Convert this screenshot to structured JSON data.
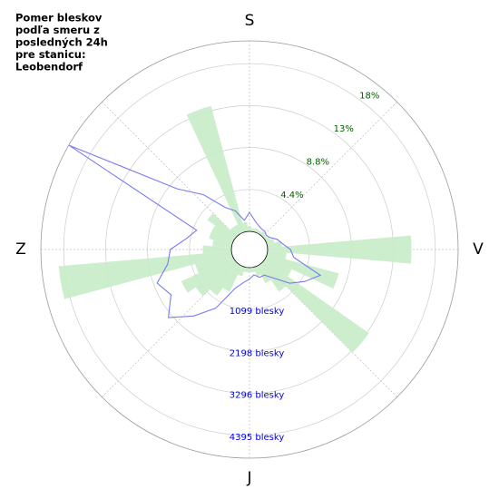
{
  "chart_data": {
    "type": "polar",
    "title": [
      "Pomer bleskov",
      "podľa smeru z",
      "posledných 24h",
      "pre stanicu:",
      "Leobendorf"
    ],
    "direction_labels": [
      "S",
      "V",
      "J",
      "Z"
    ],
    "theta": [
      0,
      10,
      20,
      30,
      40,
      50,
      60,
      70,
      80,
      90,
      100,
      110,
      120,
      130,
      140,
      150,
      160,
      170,
      180,
      190,
      200,
      210,
      220,
      230,
      240,
      250,
      260,
      270,
      280,
      290,
      300,
      310,
      320,
      330,
      340,
      350
    ],
    "series": [
      {
        "name": "percent",
        "kind": "bar",
        "color": "#c6ecc6",
        "values": [
          0.5,
          0.3,
          0.4,
          0.3,
          0.5,
          0.3,
          0.5,
          0.8,
          1.5,
          15.1,
          2.0,
          7.8,
          3.0,
          13.4,
          3.5,
          2.0,
          1.0,
          0.5,
          0.5,
          0.5,
          1.0,
          3.0,
          4.0,
          5.0,
          6.0,
          4.0,
          18.2,
          3.0,
          2.0,
          2.5,
          2.5,
          3.5,
          1.0,
          1.0,
          13.7,
          1.0
        ]
      },
      {
        "name": "count",
        "kind": "line",
        "axis": "y2",
        "color": "#7b7bef",
        "values": [
          500,
          300,
          200,
          150,
          150,
          100,
          150,
          300,
          400,
          600,
          700,
          1500,
          1200,
          900,
          500,
          300,
          300,
          200,
          300,
          400,
          600,
          1300,
          1800,
          2300,
          1900,
          2100,
          1700,
          1600,
          1200,
          1000,
          4990,
          2000,
          1400,
          800,
          600,
          300
        ]
      }
    ],
    "ylim": [
      0,
      20
    ],
    "yticks": [
      {
        "value": 4.4,
        "label": "4.4%"
      },
      {
        "value": 8.8,
        "label": "8.8%"
      },
      {
        "value": 13.2,
        "label": "13%"
      },
      {
        "value": 17.6,
        "label": "18%"
      }
    ],
    "ytick_color": "#006400",
    "y2lim": [
      0,
      4995
    ],
    "y2ticks": [
      {
        "value": 1099,
        "label": "1099 blesky"
      },
      {
        "value": 2198,
        "label": "2198 blesky"
      },
      {
        "value": 3296,
        "label": "3296 blesky"
      },
      {
        "value": 4395,
        "label": "4395 blesky"
      }
    ],
    "y2tick_color": "#0000ee",
    "grid": true
  }
}
